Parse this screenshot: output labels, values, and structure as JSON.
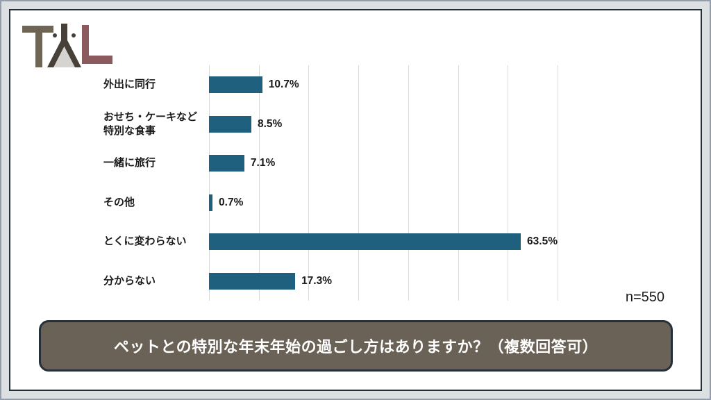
{
  "logo": {
    "name": "TAL"
  },
  "chart_data": {
    "type": "bar",
    "orientation": "horizontal",
    "categories": [
      "外出に同行",
      "おせち・ケーキなど\n特別な食事",
      "一緒に旅行",
      "その他",
      "とくに変わらない",
      "分からない"
    ],
    "values": [
      10.7,
      8.5,
      7.1,
      0.7,
      63.5,
      17.3
    ],
    "value_labels": [
      "10.7%",
      "8.5%",
      "7.1%",
      "0.7%",
      "63.5%",
      "17.3%"
    ],
    "xlim": [
      0,
      70
    ],
    "gridline_interval": 10,
    "grid": true,
    "bar_color": "#1f607e",
    "sample_size_label": "n=550"
  },
  "footer_banner": {
    "text": "ペットとの特別な年末年始の過ごし方はありますか？（複数回答可）",
    "background": "#6a6157",
    "border_color": "#26303b",
    "text_color": "#ffffff"
  },
  "colors": {
    "bar": "#1f607e",
    "gridline": "#d9d9d9",
    "frame_band": "#dde0e3",
    "frame_inner_border": "#242e39",
    "logo_t": "#6f6555",
    "logo_a": "#474038",
    "logo_a_triangle": "#d6d4d1",
    "logo_l": "#8a5a5e"
  }
}
